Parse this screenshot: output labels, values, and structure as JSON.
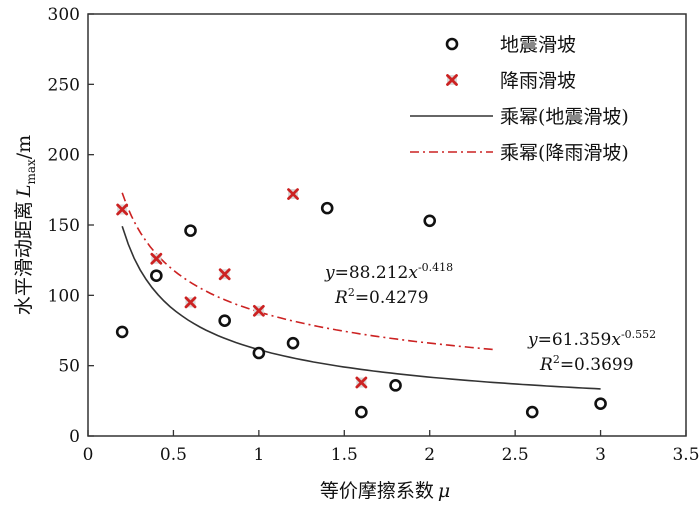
{
  "chart_data": {
    "type": "scatter",
    "xlim": [
      0,
      3.5
    ],
    "ylim": [
      0,
      300
    ],
    "x_ticks": [
      "0",
      "0.5",
      "1",
      "1.5",
      "2",
      "2.5",
      "3",
      "3.5"
    ],
    "y_ticks": [
      "0",
      "50",
      "100",
      "150",
      "200",
      "250",
      "300"
    ],
    "xlabel": {
      "text": "等价摩擦系数",
      "symbol": "μ"
    },
    "ylabel": {
      "text": "水平滑动距离",
      "symbol": "L",
      "sub": "max",
      "unit": "/m"
    },
    "grid": false,
    "legend_position": "top-right",
    "colors": {
      "earthquake": "#111111",
      "rainfall": "#cc2222",
      "axis": "#333333"
    },
    "series": [
      {
        "name": "地震滑坡",
        "marker": "circle",
        "points": [
          [
            0.2,
            74
          ],
          [
            0.4,
            114
          ],
          [
            0.6,
            146
          ],
          [
            0.8,
            82
          ],
          [
            1.0,
            59
          ],
          [
            1.2,
            66
          ],
          [
            1.4,
            162
          ],
          [
            1.6,
            17
          ],
          [
            1.8,
            36
          ],
          [
            2.0,
            153
          ],
          [
            2.6,
            17
          ],
          [
            3.0,
            23
          ]
        ]
      },
      {
        "name": "降雨滑坡",
        "marker": "x-box",
        "points": [
          [
            0.2,
            161
          ],
          [
            0.4,
            126
          ],
          [
            0.6,
            95
          ],
          [
            0.8,
            115
          ],
          [
            1.0,
            89
          ],
          [
            1.2,
            172
          ],
          [
            1.6,
            38
          ]
        ]
      }
    ],
    "fits": [
      {
        "name": "乘幂(地震滑坡)",
        "a": 61.359,
        "b": -0.552,
        "x_range": [
          0.2,
          3.0
        ],
        "style": "solid",
        "equation": {
          "y": "y",
          "eq": "=61.359",
          "x": "x",
          "exp": "-0.552"
        },
        "r2": {
          "r": "R",
          "sup": "2",
          "val": "=0.3699"
        }
      },
      {
        "name": "乘幂(降雨滑坡)",
        "a": 88.212,
        "b": -0.418,
        "x_range": [
          0.2,
          2.38
        ],
        "style": "dashdot",
        "equation": {
          "y": "y",
          "eq": "=88.212",
          "x": "x",
          "exp": "-0.418"
        },
        "r2": {
          "r": "R",
          "sup": "2",
          "val": "=0.4279"
        }
      }
    ]
  }
}
